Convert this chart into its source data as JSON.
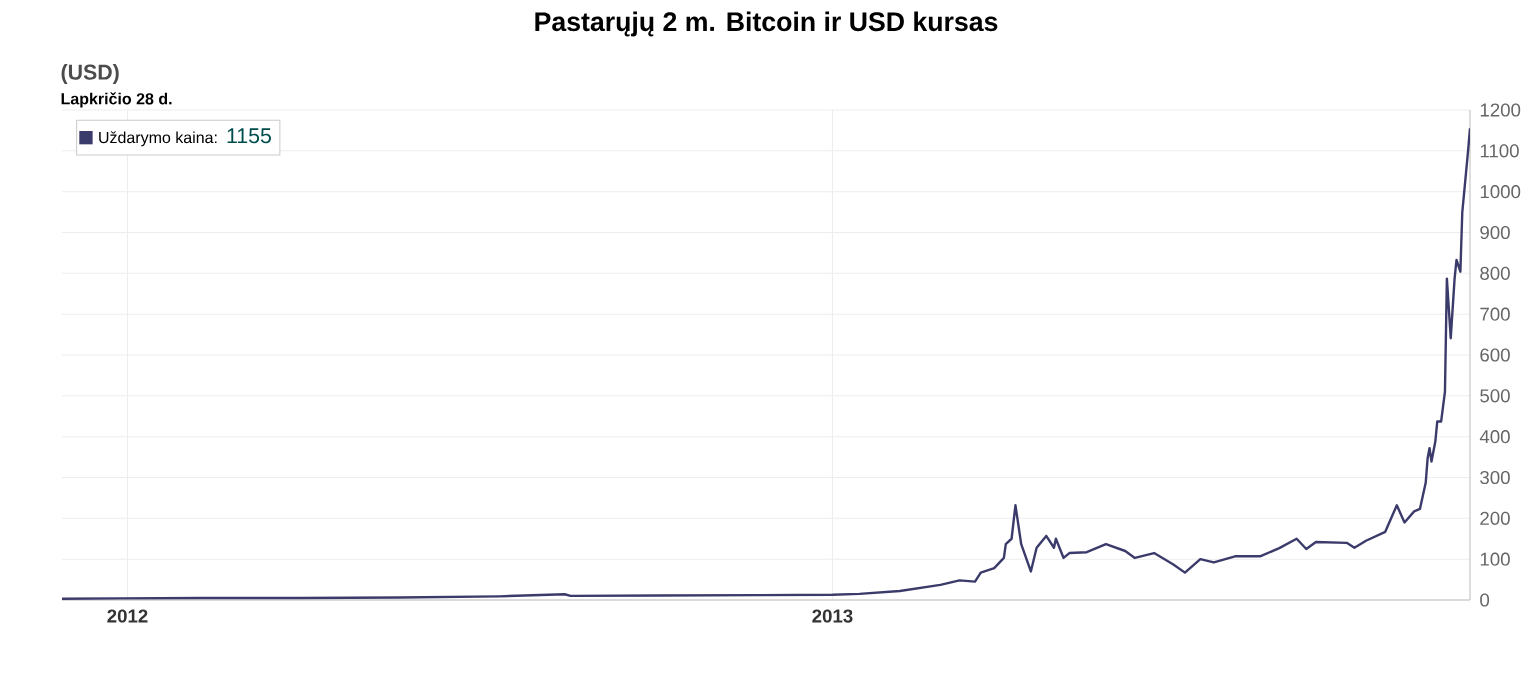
{
  "chart_data": {
    "type": "line",
    "title": "Pastarųjų 2 m. Bitcoin ir USD kursas",
    "subtitle": "(USD)",
    "annotations": [
      "Lapkričio 28 d.",
      "1155"
    ],
    "x": [
      "2011-11-28",
      "2011-12-28",
      "2012-02-08",
      "2012-03-31",
      "2012-05-21",
      "2012-07-12",
      "2012-08-15",
      "2012-08-18",
      "2012-10-03",
      "2012-11-24",
      "2013-01-01",
      "2013-01-15",
      "2013-02-05",
      "2013-02-26",
      "2013-03-08",
      "2013-03-16",
      "2013-03-19",
      "2013-03-26",
      "2013-03-31",
      "2013-04-01",
      "2013-04-04",
      "2013-04-06",
      "2013-04-09",
      "2013-04-14",
      "2013-04-17",
      "2013-04-22",
      "2013-04-26",
      "2013-04-27",
      "2013-05-01",
      "2013-05-04",
      "2013-05-13",
      "2013-05-23",
      "2013-06-02",
      "2013-06-07",
      "2013-06-17",
      "2013-06-27",
      "2013-07-03",
      "2013-07-11",
      "2013-07-18",
      "2013-07-29",
      "2013-08-11",
      "2013-08-21",
      "2013-08-30",
      "2013-09-04",
      "2013-09-09",
      "2013-09-25",
      "2013-09-29",
      "2013-10-05",
      "2013-10-15",
      "2013-10-21",
      "2013-10-25",
      "2013-10-30",
      "2013-11-02",
      "2013-11-05",
      "2013-11-06",
      "2013-11-07",
      "2013-11-08",
      "2013-11-10",
      "2013-11-11",
      "2013-11-13",
      "2013-11-15",
      "2013-11-16",
      "2013-11-18",
      "2013-11-20",
      "2013-11-21",
      "2013-11-23",
      "2013-11-24",
      "2013-11-27",
      "2013-11-28"
    ],
    "series": [
      {
        "name": "Uždarymo kaina:",
        "color": "#3b3b6b",
        "values": [
          3,
          4,
          5,
          5,
          6,
          9,
          14,
          10,
          11,
          12,
          13,
          15,
          22,
          37,
          48,
          45,
          67,
          78,
          103,
          137,
          150,
          232,
          137,
          70,
          128,
          157,
          128,
          150,
          103,
          115,
          117,
          137,
          120,
          103,
          115,
          87,
          67,
          100,
          92,
          107,
          107,
          127,
          150,
          125,
          142,
          140,
          128,
          145,
          167,
          232,
          190,
          217,
          223,
          287,
          347,
          372,
          339,
          388,
          437,
          437,
          510,
          787,
          641,
          787,
          833,
          804,
          950,
          1100,
          1155
        ]
      }
    ],
    "xlim": [
      "2011-11-28",
      "2013-11-28"
    ],
    "xticks": [
      {
        "value": "2012-01-01",
        "label": "2012"
      },
      {
        "value": "2013-01-01",
        "label": "2013"
      }
    ],
    "ylim": [
      0,
      1200
    ],
    "yticks": [
      0,
      100,
      200,
      300,
      400,
      500,
      600,
      700,
      800,
      900,
      1000,
      1100,
      1200
    ],
    "grid": true,
    "legend": "top left",
    "marker": "none",
    "line_style": "solid"
  }
}
